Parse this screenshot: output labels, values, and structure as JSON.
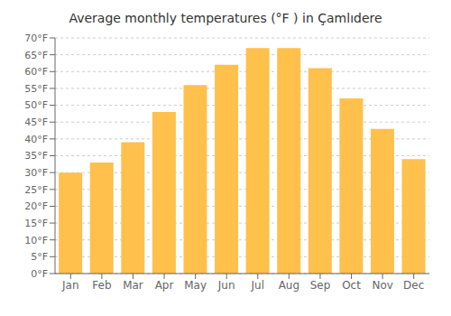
{
  "chart_data": {
    "type": "bar",
    "title": "Average monthly temperatures (°F ) in Çamlıdere",
    "categories": [
      "Jan",
      "Feb",
      "Mar",
      "Apr",
      "May",
      "Jun",
      "Jul",
      "Aug",
      "Sep",
      "Oct",
      "Nov",
      "Dec"
    ],
    "values": [
      30,
      33,
      39,
      48,
      56,
      62,
      67,
      67,
      61,
      52,
      43,
      34
    ],
    "color": "#FFC04C",
    "ylim": [
      0,
      70
    ],
    "yticks": [
      {
        "value": 0,
        "label": "0°F"
      },
      {
        "value": 5,
        "label": "5°F"
      },
      {
        "value": 10,
        "label": "10°F"
      },
      {
        "value": 15,
        "label": "15°F"
      },
      {
        "value": 20,
        "label": "20°F"
      },
      {
        "value": 25,
        "label": "25°F"
      },
      {
        "value": 30,
        "label": "30°F"
      },
      {
        "value": 35,
        "label": "35°F"
      },
      {
        "value": 40,
        "label": "40°F"
      },
      {
        "value": 45,
        "label": "45°F"
      },
      {
        "value": 50,
        "label": "50°F"
      },
      {
        "value": 55,
        "label": "55°F"
      },
      {
        "value": 60,
        "label": "60°F"
      },
      {
        "value": 65,
        "label": "65°F"
      },
      {
        "value": 70,
        "label": "70°F"
      }
    ],
    "grid": true
  }
}
